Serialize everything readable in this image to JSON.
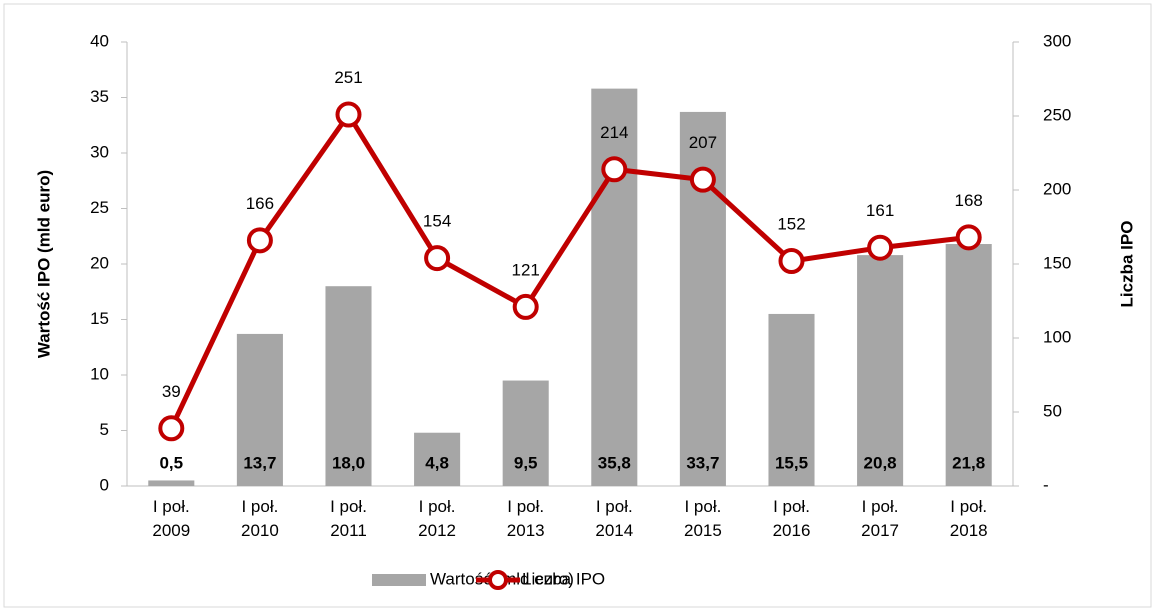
{
  "chart_data": {
    "type": "bar_line",
    "categories": [
      "I poł. 2009",
      "I poł. 2010",
      "I poł. 2011",
      "I poł. 2012",
      "I poł. 2013",
      "I poł. 2014",
      "I poł. 2015",
      "I poł. 2016",
      "I poł. 2017",
      "I poł. 2018"
    ],
    "ylabel": "Wartość IPO (mld euro)",
    "y2label": "Liczba IPO",
    "ylim": [
      0,
      40
    ],
    "yticks": [
      0,
      5,
      10,
      15,
      20,
      25,
      30,
      35,
      40
    ],
    "y2lim": [
      0,
      300
    ],
    "y2ticks": [
      {
        "value": 0,
        "label": "-"
      },
      50,
      100,
      150,
      200,
      250,
      300
    ],
    "legend": "bottom",
    "series": [
      {
        "name": "Wartość (mld euro)",
        "type": "bar",
        "color": "#a6a6a6",
        "values": [
          0.5,
          13.7,
          18.0,
          4.8,
          9.5,
          35.8,
          33.7,
          15.5,
          20.8,
          21.8
        ],
        "value_labels": [
          "0,5",
          "13,7",
          "18,0",
          "4,8",
          "9,5",
          "35,8",
          "33,7",
          "15,5",
          "20,8",
          "21,8"
        ]
      },
      {
        "name": "Liczba IPO",
        "type": "line",
        "axis": "y2",
        "color": "#c00000",
        "values": [
          39,
          166,
          251,
          154,
          121,
          214,
          207,
          152,
          161,
          168
        ]
      }
    ]
  }
}
